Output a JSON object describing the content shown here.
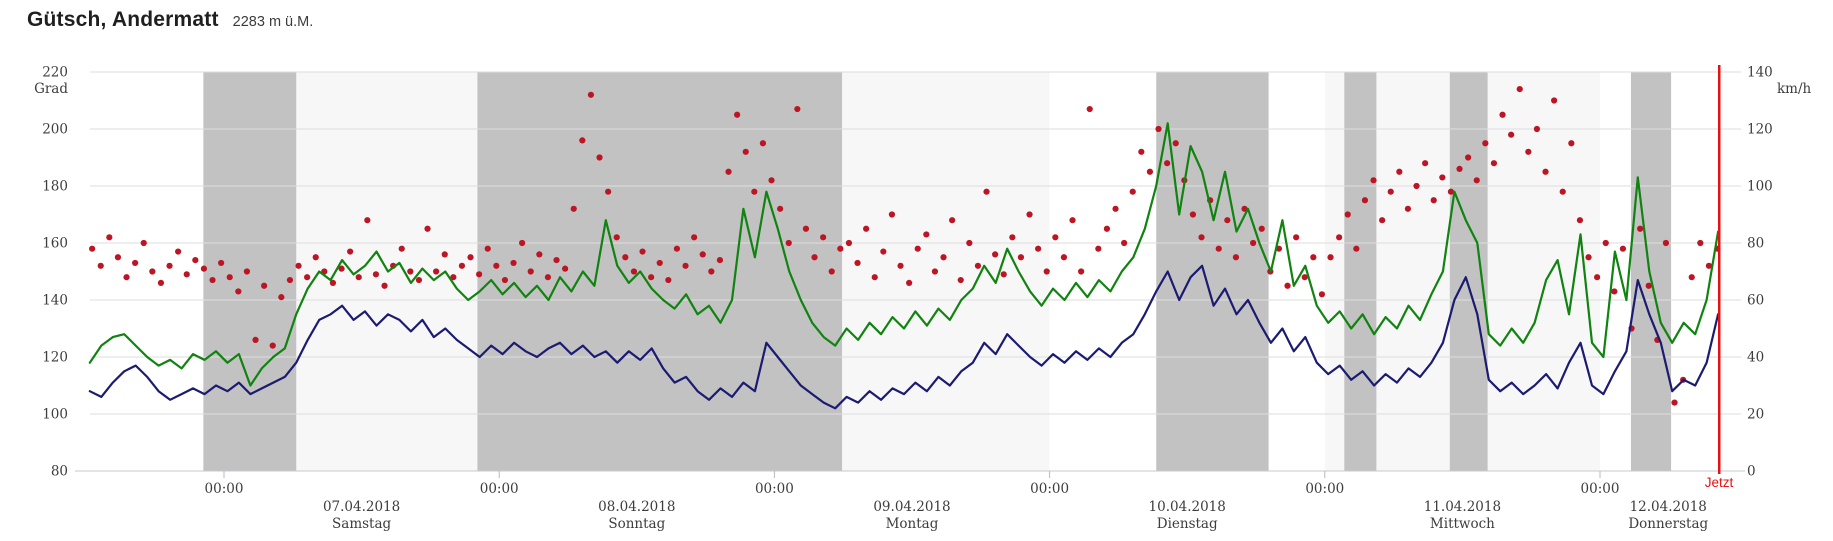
{
  "header": {
    "title": "Gütsch, Andermatt",
    "subtitle": "2283 m ü.M."
  },
  "chart_data": {
    "type": "line",
    "title": "Gütsch, Andermatt",
    "subtitle": "2283 m ü.M.",
    "left_axis": {
      "label": "Grad",
      "min": 80,
      "max": 220,
      "ticks": [
        220,
        200,
        180,
        160,
        140,
        120,
        100,
        80
      ]
    },
    "right_axis": {
      "label": "km/h",
      "min": 0,
      "max": 140,
      "ticks": [
        140,
        120,
        100,
        80,
        60,
        40,
        20,
        0
      ]
    },
    "x_axis": {
      "unit": "hours since 07.04.2018 00:00",
      "min": -11.7,
      "max": 131.9,
      "midnights": [
        0,
        24,
        48,
        72,
        96,
        120
      ],
      "midnight_tick_label": "00:00"
    },
    "days": [
      {
        "date": "",
        "weekday": "",
        "start": -11.7,
        "end": 0,
        "shade": "white"
      },
      {
        "date": "07.04.2018",
        "weekday": "Samstag",
        "start": 0,
        "end": 24,
        "shade": "light"
      },
      {
        "date": "08.04.2018",
        "weekday": "Sonntag",
        "start": 24,
        "end": 48,
        "shade": "white"
      },
      {
        "date": "09.04.2018",
        "weekday": "Montag",
        "start": 48,
        "end": 72,
        "shade": "light"
      },
      {
        "date": "10.04.2018",
        "weekday": "Dienstag",
        "start": 72,
        "end": 96,
        "shade": "white"
      },
      {
        "date": "11.04.2018",
        "weekday": "Mittwoch",
        "start": 96,
        "end": 120,
        "shade": "light"
      },
      {
        "date": "12.04.2018",
        "weekday": "Donnerstag",
        "start": 120,
        "end": 131.9,
        "shade": "white"
      }
    ],
    "night_bands": [
      [
        -1.8,
        6.3
      ],
      [
        22.1,
        53.9
      ],
      [
        81.3,
        91.1
      ],
      [
        97.7,
        100.5
      ],
      [
        106.9,
        110.2
      ],
      [
        122.7,
        126.2
      ]
    ],
    "now": {
      "label": "Jetzt",
      "hour": 130.4
    },
    "colors": {
      "band": "#c2c2c2",
      "day_light": "#f7f7f7",
      "day_white": "#ffffff",
      "grid": "#dedede",
      "axis_line": "#c3c9d3",
      "tick": "#b9b9b9",
      "tick_text": "#3d3d3d",
      "now_line": "#e81111",
      "direction": "#bc1523",
      "gusts": "#108310",
      "wind": "#1b1b72"
    },
    "series": [
      {
        "name": "direction",
        "type": "scatter",
        "axis": "left",
        "color": "#bc1523",
        "start_hour": -11.5,
        "step_hours": 0.75,
        "values": [
          158,
          152,
          162,
          155,
          148,
          153,
          160,
          150,
          146,
          152,
          157,
          149,
          154,
          151,
          147,
          153,
          148,
          143,
          150,
          126,
          145,
          124,
          141,
          147,
          152,
          148,
          155,
          150,
          146,
          151,
          157,
          148,
          168,
          149,
          145,
          152,
          158,
          150,
          147,
          165,
          150,
          156,
          148,
          152,
          155,
          149,
          158,
          152,
          147,
          153,
          160,
          150,
          156,
          148,
          154,
          151,
          172,
          196,
          212,
          190,
          178,
          162,
          155,
          150,
          157,
          148,
          153,
          147,
          158,
          152,
          162,
          156,
          150,
          154,
          185,
          205,
          192,
          178,
          195,
          182,
          172,
          160,
          207,
          165,
          155,
          162,
          150,
          158,
          160,
          153,
          165,
          148,
          157,
          170,
          152,
          146,
          158,
          163,
          150,
          155,
          168,
          147,
          160,
          152,
          178,
          156,
          149,
          162,
          155,
          170,
          158,
          150,
          162,
          155,
          168,
          150,
          207,
          158,
          165,
          172,
          160,
          178,
          192,
          185,
          200,
          188,
          195,
          182,
          170,
          162,
          175,
          158,
          168,
          155,
          172,
          160,
          165,
          150,
          158,
          145,
          162,
          148,
          155,
          142,
          155,
          162,
          170,
          158,
          175,
          182,
          168,
          178,
          185,
          172,
          180,
          188,
          175,
          183,
          178,
          186,
          190,
          182,
          195,
          188,
          205,
          198,
          214,
          192,
          200,
          185,
          210,
          178,
          195,
          168,
          155,
          148,
          160,
          143,
          158,
          130,
          165,
          145,
          126,
          160,
          104,
          112,
          148,
          160,
          152,
          158
        ]
      },
      {
        "name": "gusts",
        "type": "line",
        "axis": "right",
        "color": "#108310",
        "start_hour": -11.7,
        "step_hours": 1,
        "values": [
          38,
          44,
          47,
          48,
          44,
          40,
          37,
          39,
          36,
          41,
          39,
          42,
          38,
          41,
          30,
          36,
          40,
          43,
          55,
          64,
          70,
          67,
          74,
          69,
          72,
          77,
          70,
          73,
          66,
          71,
          67,
          70,
          64,
          60,
          63,
          67,
          62,
          66,
          61,
          65,
          60,
          68,
          63,
          70,
          65,
          88,
          72,
          66,
          70,
          64,
          60,
          57,
          62,
          55,
          58,
          52,
          60,
          92,
          75,
          98,
          85,
          70,
          60,
          52,
          47,
          44,
          50,
          46,
          52,
          48,
          54,
          50,
          56,
          51,
          57,
          53,
          60,
          64,
          72,
          66,
          78,
          70,
          63,
          58,
          64,
          60,
          66,
          61,
          67,
          63,
          70,
          75,
          85,
          100,
          122,
          90,
          114,
          105,
          88,
          105,
          84,
          92,
          80,
          70,
          88,
          65,
          72,
          58,
          52,
          56,
          50,
          55,
          48,
          54,
          50,
          58,
          53,
          62,
          70,
          98,
          88,
          80,
          48,
          44,
          50,
          45,
          52,
          67,
          74,
          55,
          83,
          45,
          40,
          77,
          60,
          103,
          70,
          52,
          45,
          52,
          48,
          60,
          84
        ]
      },
      {
        "name": "wind",
        "type": "line",
        "axis": "right",
        "color": "#1b1b72",
        "start_hour": -11.7,
        "step_hours": 1,
        "values": [
          28,
          26,
          31,
          35,
          37,
          33,
          28,
          25,
          27,
          29,
          27,
          30,
          28,
          31,
          27,
          29,
          31,
          33,
          38,
          46,
          53,
          55,
          58,
          53,
          56,
          51,
          55,
          53,
          49,
          53,
          47,
          50,
          46,
          43,
          40,
          44,
          41,
          45,
          42,
          40,
          43,
          45,
          41,
          44,
          40,
          42,
          38,
          42,
          39,
          43,
          36,
          31,
          33,
          28,
          25,
          29,
          26,
          31,
          28,
          45,
          40,
          35,
          30,
          27,
          24,
          22,
          26,
          24,
          28,
          25,
          29,
          27,
          31,
          28,
          33,
          30,
          35,
          38,
          45,
          41,
          48,
          44,
          40,
          37,
          41,
          38,
          42,
          39,
          43,
          40,
          45,
          48,
          55,
          63,
          70,
          60,
          68,
          72,
          58,
          64,
          55,
          60,
          52,
          45,
          50,
          42,
          47,
          38,
          34,
          37,
          32,
          35,
          30,
          34,
          31,
          36,
          33,
          38,
          45,
          60,
          68,
          55,
          32,
          28,
          31,
          27,
          30,
          34,
          29,
          38,
          45,
          30,
          27,
          35,
          42,
          67,
          55,
          45,
          28,
          32,
          30,
          38,
          55
        ]
      }
    ]
  }
}
